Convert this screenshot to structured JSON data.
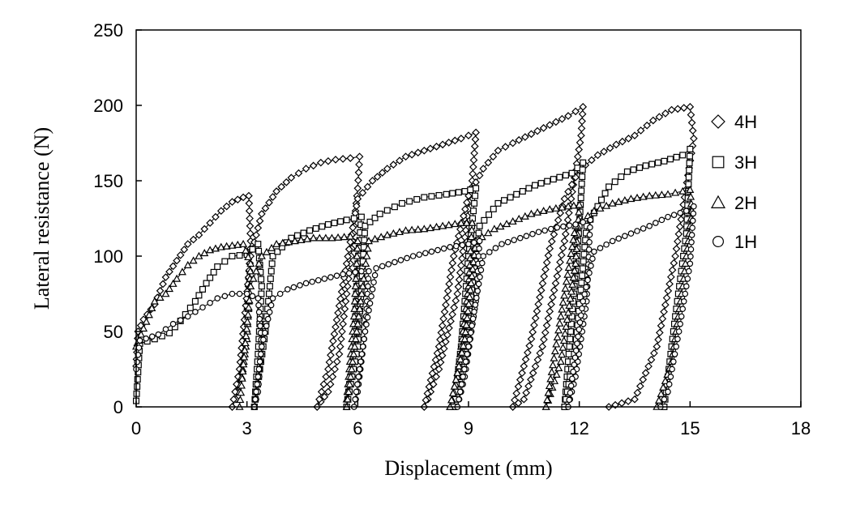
{
  "chart_data": {
    "type": "line",
    "xlabel": "Displacement (mm)",
    "ylabel": "Lateral resistance (N)",
    "xlim": [
      0,
      18
    ],
    "ylim": [
      0,
      250
    ],
    "xticks": [
      "0",
      "3",
      "6",
      "9",
      "12",
      "15",
      "18"
    ],
    "yticks": [
      "0",
      "50",
      "100",
      "150",
      "200",
      "250"
    ],
    "grid": false,
    "legend_position": "right",
    "series": [
      {
        "name": "4H",
        "marker": "diamond",
        "segments": [
          [
            [
              0,
              27
            ],
            [
              0.05,
              50
            ],
            [
              0.2,
              58
            ],
            [
              0.5,
              68
            ],
            [
              0.8,
              86
            ],
            [
              1.1,
              97
            ],
            [
              1.4,
              108
            ],
            [
              1.7,
              114
            ],
            [
              2.0,
              122
            ],
            [
              2.3,
              130
            ],
            [
              2.6,
              136
            ],
            [
              2.9,
              139
            ],
            [
              3.05,
              140
            ],
            [
              3.1,
              110
            ],
            [
              3.0,
              60
            ],
            [
              2.7,
              5
            ],
            [
              2.6,
              0
            ]
          ],
          [
            [
              2.6,
              0
            ],
            [
              2.8,
              25
            ],
            [
              3.1,
              100
            ],
            [
              3.4,
              128
            ],
            [
              3.8,
              143
            ],
            [
              4.2,
              152
            ],
            [
              4.6,
              158
            ],
            [
              5.0,
              162
            ],
            [
              5.4,
              164
            ],
            [
              5.8,
              165
            ],
            [
              6.05,
              166
            ],
            [
              6.0,
              145
            ],
            [
              5.8,
              95
            ],
            [
              5.5,
              35
            ],
            [
              5.2,
              10
            ],
            [
              4.9,
              0
            ]
          ],
          [
            [
              4.9,
              0
            ],
            [
              5.2,
              25
            ],
            [
              5.7,
              95
            ],
            [
              6.0,
              138
            ],
            [
              6.4,
              150
            ],
            [
              6.8,
              158
            ],
            [
              7.3,
              166
            ],
            [
              7.8,
              170
            ],
            [
              8.3,
              174
            ],
            [
              8.8,
              178
            ],
            [
              9.2,
              182
            ],
            [
              9.1,
              150
            ],
            [
              8.7,
              75
            ],
            [
              8.2,
              25
            ],
            [
              7.9,
              5
            ],
            [
              7.8,
              0
            ]
          ],
          [
            [
              7.8,
              0
            ],
            [
              8.2,
              40
            ],
            [
              8.6,
              100
            ],
            [
              9.0,
              140
            ],
            [
              9.4,
              158
            ],
            [
              9.8,
              170
            ],
            [
              10.2,
              175
            ],
            [
              10.7,
              181
            ],
            [
              11.2,
              187
            ],
            [
              11.7,
              193
            ],
            [
              12.1,
              199
            ],
            [
              12.05,
              180
            ],
            [
              11.6,
              110
            ],
            [
              11.0,
              40
            ],
            [
              10.5,
              5
            ],
            [
              10.2,
              0
            ]
          ],
          [
            [
              10.2,
              0
            ],
            [
              10.7,
              45
            ],
            [
              11.2,
              105
            ],
            [
              11.6,
              138
            ],
            [
              12.0,
              157
            ],
            [
              12.5,
              167
            ],
            [
              13.0,
              174
            ],
            [
              13.5,
              180
            ],
            [
              14.0,
              190
            ],
            [
              14.5,
              197
            ],
            [
              15.0,
              199
            ],
            [
              15.1,
              178
            ],
            [
              14.6,
              100
            ],
            [
              14.1,
              40
            ],
            [
              13.5,
              5
            ],
            [
              12.8,
              0
            ]
          ]
        ]
      },
      {
        "name": "3H",
        "marker": "square",
        "segments": [
          [
            [
              0,
              4
            ],
            [
              0.1,
              42
            ],
            [
              0.5,
              45
            ],
            [
              0.9,
              49
            ],
            [
              1.2,
              57
            ],
            [
              1.6,
              70
            ],
            [
              1.9,
              82
            ],
            [
              2.2,
              93
            ],
            [
              2.6,
              100
            ],
            [
              3.0,
              101
            ],
            [
              3.3,
              108
            ],
            [
              3.4,
              80
            ],
            [
              3.3,
              35
            ],
            [
              3.2,
              0
            ]
          ],
          [
            [
              3.2,
              0
            ],
            [
              3.5,
              50
            ],
            [
              3.7,
              100
            ],
            [
              4.2,
              112
            ],
            [
              4.7,
              117
            ],
            [
              5.2,
              121
            ],
            [
              5.7,
              124
            ],
            [
              6.1,
              126
            ],
            [
              6.0,
              95
            ],
            [
              5.9,
              40
            ],
            [
              5.7,
              0
            ]
          ],
          [
            [
              5.7,
              0
            ],
            [
              6.0,
              40
            ],
            [
              6.2,
              120
            ],
            [
              6.6,
              128
            ],
            [
              7.2,
              135
            ],
            [
              7.8,
              139
            ],
            [
              8.4,
              141
            ],
            [
              8.9,
              143
            ],
            [
              9.2,
              145
            ],
            [
              9.0,
              100
            ],
            [
              8.8,
              40
            ],
            [
              8.6,
              0
            ]
          ],
          [
            [
              8.6,
              0
            ],
            [
              8.9,
              40
            ],
            [
              9.3,
              120
            ],
            [
              9.8,
              135
            ],
            [
              10.3,
              141
            ],
            [
              10.8,
              147
            ],
            [
              11.3,
              151
            ],
            [
              11.8,
              155
            ],
            [
              12.1,
              162
            ],
            [
              12.0,
              120
            ],
            [
              11.8,
              60
            ],
            [
              11.6,
              0
            ]
          ],
          [
            [
              11.6,
              0
            ],
            [
              11.9,
              40
            ],
            [
              12.2,
              120
            ],
            [
              12.8,
              146
            ],
            [
              13.3,
              156
            ],
            [
              13.8,
              160
            ],
            [
              14.3,
              163
            ],
            [
              14.8,
              167
            ],
            [
              15.0,
              171
            ],
            [
              14.9,
              115
            ],
            [
              14.6,
              60
            ],
            [
              14.3,
              0
            ]
          ]
        ]
      },
      {
        "name": "2H",
        "marker": "triangle",
        "segments": [
          [
            [
              0,
              40
            ],
            [
              0.2,
              52
            ],
            [
              0.5,
              70
            ],
            [
              0.8,
              75
            ],
            [
              1.1,
              85
            ],
            [
              1.4,
              94
            ],
            [
              1.7,
              100
            ],
            [
              2.0,
              104
            ],
            [
              2.3,
              106
            ],
            [
              2.6,
              107
            ],
            [
              2.9,
              108
            ],
            [
              3.1,
              95
            ],
            [
              3.0,
              45
            ],
            [
              2.8,
              10
            ]
          ],
          [
            [
              2.8,
              0
            ],
            [
              3.1,
              80
            ],
            [
              3.4,
              100
            ],
            [
              3.8,
              108
            ],
            [
              4.3,
              110
            ],
            [
              4.8,
              112
            ],
            [
              5.3,
              112
            ],
            [
              5.8,
              113
            ],
            [
              6.0,
              110
            ],
            [
              5.9,
              60
            ],
            [
              5.7,
              5
            ]
          ],
          [
            [
              5.7,
              0
            ],
            [
              6.0,
              55
            ],
            [
              6.3,
              110
            ],
            [
              6.8,
              114
            ],
            [
              7.3,
              117
            ],
            [
              7.8,
              118
            ],
            [
              8.3,
              120
            ],
            [
              8.8,
              122
            ],
            [
              9.1,
              122
            ],
            [
              9.0,
              80
            ],
            [
              8.7,
              20
            ],
            [
              8.5,
              0
            ]
          ],
          [
            [
              8.5,
              0
            ],
            [
              8.9,
              45
            ],
            [
              9.2,
              110
            ],
            [
              9.7,
              118
            ],
            [
              10.2,
              123
            ],
            [
              10.7,
              128
            ],
            [
              11.2,
              131
            ],
            [
              11.7,
              133
            ],
            [
              12.0,
              134
            ],
            [
              11.9,
              95
            ],
            [
              11.5,
              30
            ],
            [
              11.1,
              0
            ]
          ],
          [
            [
              11.1,
              0
            ],
            [
              11.5,
              60
            ],
            [
              11.9,
              120
            ],
            [
              12.4,
              130
            ],
            [
              12.9,
              135
            ],
            [
              13.4,
              138
            ],
            [
              13.9,
              140
            ],
            [
              14.4,
              141
            ],
            [
              15.0,
              144
            ],
            [
              15.05,
              130
            ],
            [
              14.8,
              80
            ],
            [
              14.5,
              30
            ],
            [
              14.1,
              0
            ]
          ]
        ]
      },
      {
        "name": "1H",
        "marker": "circle",
        "segments": [
          [
            [
              0,
              25
            ],
            [
              0.1,
              44
            ],
            [
              0.6,
              48
            ],
            [
              1.0,
              55
            ],
            [
              1.4,
              60
            ],
            [
              1.8,
              66
            ],
            [
              2.2,
              72
            ],
            [
              2.6,
              75
            ],
            [
              3.0,
              75
            ],
            [
              3.3,
              72
            ],
            [
              3.4,
              40
            ],
            [
              3.3,
              10
            ],
            [
              3.2,
              0
            ]
          ],
          [
            [
              3.2,
              0
            ],
            [
              3.4,
              40
            ],
            [
              3.7,
              72
            ],
            [
              4.1,
              78
            ],
            [
              4.6,
              82
            ],
            [
              5.1,
              85
            ],
            [
              5.6,
              88
            ],
            [
              6.1,
              90
            ],
            [
              6.3,
              90
            ],
            [
              6.2,
              50
            ],
            [
              6.0,
              10
            ],
            [
              5.9,
              0
            ]
          ],
          [
            [
              5.9,
              0
            ],
            [
              6.2,
              50
            ],
            [
              6.5,
              92
            ],
            [
              7.0,
              96
            ],
            [
              7.5,
              100
            ],
            [
              8.0,
              103
            ],
            [
              8.5,
              106
            ],
            [
              9.0,
              108
            ],
            [
              9.3,
              110
            ],
            [
              9.2,
              70
            ],
            [
              8.9,
              20
            ],
            [
              8.7,
              0
            ]
          ],
          [
            [
              8.7,
              0
            ],
            [
              9.0,
              40
            ],
            [
              9.4,
              100
            ],
            [
              9.9,
              108
            ],
            [
              10.4,
              112
            ],
            [
              10.9,
              116
            ],
            [
              11.4,
              119
            ],
            [
              11.9,
              121
            ],
            [
              12.3,
              124
            ],
            [
              12.2,
              70
            ],
            [
              11.9,
              20
            ],
            [
              11.7,
              0
            ]
          ],
          [
            [
              11.7,
              0
            ],
            [
              12.1,
              70
            ],
            [
              12.4,
              103
            ],
            [
              12.9,
              110
            ],
            [
              13.4,
              115
            ],
            [
              13.9,
              120
            ],
            [
              14.4,
              126
            ],
            [
              14.9,
              130
            ],
            [
              15.1,
              133
            ],
            [
              15.0,
              95
            ],
            [
              14.7,
              50
            ],
            [
              14.4,
              10
            ],
            [
              14.2,
              0
            ]
          ]
        ]
      }
    ]
  }
}
